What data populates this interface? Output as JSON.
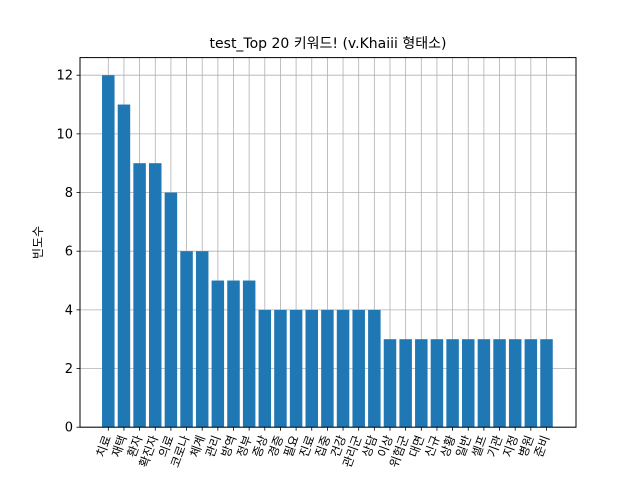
{
  "chart_data": {
    "type": "bar",
    "title": "test_Top 20 키워드! (v.Khaiii 형태소)",
    "xlabel": "",
    "ylabel": "빈도수",
    "ylim": [
      0,
      12.6
    ],
    "yticks": [
      0,
      2,
      4,
      6,
      8,
      10,
      12
    ],
    "grid": true,
    "bar_color": "#1f77b4",
    "categories": [
      "치료",
      "재택",
      "환자",
      "확진자",
      "의료",
      "코로나",
      "체계",
      "관리",
      "방역",
      "정부",
      "증상",
      "경증",
      "필요",
      "진료",
      "집중",
      "건강",
      "관리군",
      "상담",
      "이상",
      "위험군",
      "대면",
      "신규",
      "상황",
      "일반",
      "셀프",
      "기관",
      "지정",
      "병원",
      "준비"
    ],
    "values": [
      12,
      11,
      9,
      9,
      8,
      6,
      6,
      5,
      5,
      5,
      4,
      4,
      4,
      4,
      4,
      4,
      4,
      4,
      3,
      3,
      3,
      3,
      3,
      3,
      3,
      3,
      3,
      3,
      3
    ]
  }
}
